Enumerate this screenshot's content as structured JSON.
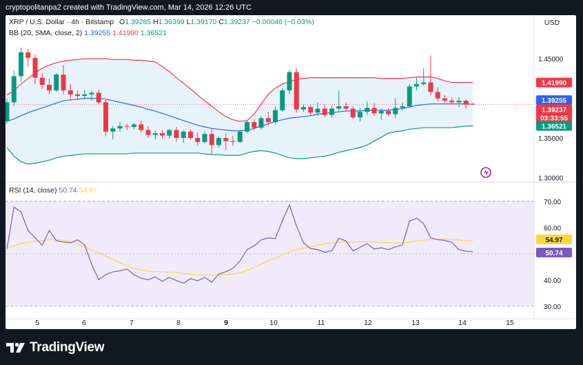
{
  "watermark_header": "cryptopolitanpa2 created with TradingView.com, Mar 14, 2026 12:26 UTC",
  "legend": {
    "symbol": "XRP / U.S. Dollar · 4h · Bitstamp",
    "open_label": "O",
    "open": "1.39285",
    "high_label": "H",
    "high": "1.39399",
    "low_label": "L",
    "low": "1.39170",
    "close_label": "C",
    "close": "1.39237",
    "change": "−0.00046 (−0.03%)",
    "bb_label": "BB (20, SMA, close, 2)",
    "bb_basis": "1.39255",
    "bb_upper": "1.41990",
    "bb_lower": "1.36521",
    "rsi_label": "RSI (14, close)",
    "rsi_value": "50.74",
    "rsi_ma": "54.97"
  },
  "currency_button": "USD",
  "colors": {
    "up": "#089981",
    "down": "#f23645",
    "bb_basis": "#2962ff",
    "bb_upper": "#f23645",
    "bb_lower": "#089981",
    "rsi": "#7e57c2",
    "rsi_ma": "#fdd835",
    "bb_fill": "#e7f3fb",
    "rsi_fill": "#f0ebfa"
  },
  "footer": {
    "brand": "TradingView"
  },
  "chart_data": [
    {
      "type": "candlestick",
      "title": "XRP / U.S. Dollar · 4h · Bitstamp",
      "x_tick_labels": [
        "5",
        "6",
        "7",
        "8",
        "9",
        "10",
        "11",
        "12",
        "13",
        "14",
        "15"
      ],
      "y_tick_labels": [
        "1.45000",
        "1.40000",
        "1.35000",
        "1.30000"
      ],
      "ylim": [
        1.2969,
        1.4718
      ],
      "price_labels": [
        {
          "name": "upper",
          "value": 1.4199,
          "text": "1.41990"
        },
        {
          "name": "basis",
          "value": 1.39255,
          "text": "1.39255"
        },
        {
          "name": "last",
          "value": 1.39237,
          "text": "1.39237",
          "countdown": "03:33:55"
        },
        {
          "name": "lower",
          "value": 1.36521,
          "text": "1.36521"
        }
      ],
      "candles": [
        {
          "o": 1.371,
          "h": 1.4,
          "l": 1.368,
          "c": 1.395
        },
        {
          "o": 1.395,
          "h": 1.435,
          "l": 1.39,
          "c": 1.428
        },
        {
          "o": 1.428,
          "h": 1.464,
          "l": 1.421,
          "c": 1.458
        },
        {
          "o": 1.458,
          "h": 1.462,
          "l": 1.44,
          "c": 1.451
        },
        {
          "o": 1.451,
          "h": 1.455,
          "l": 1.418,
          "c": 1.426
        },
        {
          "o": 1.426,
          "h": 1.432,
          "l": 1.412,
          "c": 1.417
        },
        {
          "o": 1.417,
          "h": 1.425,
          "l": 1.405,
          "c": 1.41
        },
        {
          "o": 1.41,
          "h": 1.432,
          "l": 1.408,
          "c": 1.43
        },
        {
          "o": 1.43,
          "h": 1.442,
          "l": 1.405,
          "c": 1.41
        },
        {
          "o": 1.41,
          "h": 1.418,
          "l": 1.397,
          "c": 1.405
        },
        {
          "o": 1.405,
          "h": 1.41,
          "l": 1.398,
          "c": 1.403
        },
        {
          "o": 1.403,
          "h": 1.41,
          "l": 1.399,
          "c": 1.405
        },
        {
          "o": 1.405,
          "h": 1.409,
          "l": 1.397,
          "c": 1.407
        },
        {
          "o": 1.407,
          "h": 1.411,
          "l": 1.392,
          "c": 1.395
        },
        {
          "o": 1.395,
          "h": 1.398,
          "l": 1.352,
          "c": 1.358
        },
        {
          "o": 1.358,
          "h": 1.365,
          "l": 1.348,
          "c": 1.362
        },
        {
          "o": 1.362,
          "h": 1.37,
          "l": 1.358,
          "c": 1.365
        },
        {
          "o": 1.365,
          "h": 1.368,
          "l": 1.36,
          "c": 1.364
        },
        {
          "o": 1.364,
          "h": 1.369,
          "l": 1.361,
          "c": 1.367
        },
        {
          "o": 1.367,
          "h": 1.372,
          "l": 1.357,
          "c": 1.36
        },
        {
          "o": 1.36,
          "h": 1.365,
          "l": 1.35,
          "c": 1.354
        },
        {
          "o": 1.354,
          "h": 1.359,
          "l": 1.348,
          "c": 1.356
        },
        {
          "o": 1.356,
          "h": 1.36,
          "l": 1.349,
          "c": 1.353
        },
        {
          "o": 1.353,
          "h": 1.361,
          "l": 1.349,
          "c": 1.36
        },
        {
          "o": 1.36,
          "h": 1.364,
          "l": 1.345,
          "c": 1.35
        },
        {
          "o": 1.35,
          "h": 1.36,
          "l": 1.344,
          "c": 1.358
        },
        {
          "o": 1.358,
          "h": 1.361,
          "l": 1.348,
          "c": 1.35
        },
        {
          "o": 1.35,
          "h": 1.357,
          "l": 1.34,
          "c": 1.345
        },
        {
          "o": 1.345,
          "h": 1.358,
          "l": 1.343,
          "c": 1.355
        },
        {
          "o": 1.355,
          "h": 1.362,
          "l": 1.33,
          "c": 1.341
        },
        {
          "o": 1.341,
          "h": 1.352,
          "l": 1.338,
          "c": 1.35
        },
        {
          "o": 1.35,
          "h": 1.356,
          "l": 1.335,
          "c": 1.346
        },
        {
          "o": 1.346,
          "h": 1.353,
          "l": 1.34,
          "c": 1.345
        },
        {
          "o": 1.345,
          "h": 1.36,
          "l": 1.344,
          "c": 1.358
        },
        {
          "o": 1.358,
          "h": 1.372,
          "l": 1.356,
          "c": 1.37
        },
        {
          "o": 1.37,
          "h": 1.374,
          "l": 1.36,
          "c": 1.363
        },
        {
          "o": 1.363,
          "h": 1.378,
          "l": 1.36,
          "c": 1.375
        },
        {
          "o": 1.375,
          "h": 1.383,
          "l": 1.366,
          "c": 1.37
        },
        {
          "o": 1.37,
          "h": 1.39,
          "l": 1.368,
          "c": 1.385
        },
        {
          "o": 1.385,
          "h": 1.413,
          "l": 1.383,
          "c": 1.41
        },
        {
          "o": 1.41,
          "h": 1.436,
          "l": 1.405,
          "c": 1.433
        },
        {
          "o": 1.433,
          "h": 1.438,
          "l": 1.382,
          "c": 1.386
        },
        {
          "o": 1.386,
          "h": 1.392,
          "l": 1.383,
          "c": 1.389
        },
        {
          "o": 1.389,
          "h": 1.392,
          "l": 1.378,
          "c": 1.382
        },
        {
          "o": 1.382,
          "h": 1.395,
          "l": 1.378,
          "c": 1.387
        },
        {
          "o": 1.387,
          "h": 1.392,
          "l": 1.376,
          "c": 1.379
        },
        {
          "o": 1.379,
          "h": 1.391,
          "l": 1.376,
          "c": 1.387
        },
        {
          "o": 1.387,
          "h": 1.41,
          "l": 1.384,
          "c": 1.39
        },
        {
          "o": 1.39,
          "h": 1.395,
          "l": 1.384,
          "c": 1.387
        },
        {
          "o": 1.387,
          "h": 1.39,
          "l": 1.374,
          "c": 1.376
        },
        {
          "o": 1.376,
          "h": 1.388,
          "l": 1.371,
          "c": 1.383
        },
        {
          "o": 1.383,
          "h": 1.396,
          "l": 1.379,
          "c": 1.388
        },
        {
          "o": 1.388,
          "h": 1.394,
          "l": 1.378,
          "c": 1.381
        },
        {
          "o": 1.381,
          "h": 1.387,
          "l": 1.373,
          "c": 1.384
        },
        {
          "o": 1.384,
          "h": 1.387,
          "l": 1.378,
          "c": 1.38
        },
        {
          "o": 1.38,
          "h": 1.4,
          "l": 1.375,
          "c": 1.388
        },
        {
          "o": 1.388,
          "h": 1.395,
          "l": 1.385,
          "c": 1.39
        },
        {
          "o": 1.39,
          "h": 1.418,
          "l": 1.388,
          "c": 1.415
        },
        {
          "o": 1.415,
          "h": 1.426,
          "l": 1.41,
          "c": 1.418
        },
        {
          "o": 1.418,
          "h": 1.438,
          "l": 1.416,
          "c": 1.42
        },
        {
          "o": 1.42,
          "h": 1.454,
          "l": 1.404,
          "c": 1.408
        },
        {
          "o": 1.408,
          "h": 1.414,
          "l": 1.396,
          "c": 1.4
        },
        {
          "o": 1.4,
          "h": 1.404,
          "l": 1.394,
          "c": 1.397
        },
        {
          "o": 1.397,
          "h": 1.401,
          "l": 1.393,
          "c": 1.395
        },
        {
          "o": 1.395,
          "h": 1.401,
          "l": 1.389,
          "c": 1.397
        },
        {
          "o": 1.397,
          "h": 1.399,
          "l": 1.387,
          "c": 1.392
        },
        {
          "o": 1.39285,
          "h": 1.39399,
          "l": 1.3917,
          "c": 1.39237
        }
      ],
      "series": [
        {
          "name": "BB basis",
          "values": [
            1.371,
            1.374,
            1.378,
            1.382,
            1.385,
            1.388,
            1.391,
            1.394,
            1.397,
            1.398,
            1.399,
            1.4,
            1.4,
            1.4,
            1.399,
            1.397,
            1.395,
            1.393,
            1.391,
            1.389,
            1.386,
            1.384,
            1.381,
            1.378,
            1.375,
            1.372,
            1.369,
            1.366,
            1.364,
            1.362,
            1.361,
            1.36,
            1.359,
            1.359,
            1.36,
            1.362,
            1.365,
            1.368,
            1.371,
            1.373,
            1.375,
            1.376,
            1.377,
            1.378,
            1.38,
            1.381,
            1.382,
            1.383,
            1.384,
            1.384,
            1.384,
            1.385,
            1.385,
            1.385,
            1.385,
            1.386,
            1.387,
            1.389,
            1.391,
            1.392,
            1.393,
            1.393,
            1.393,
            1.393,
            1.393,
            1.393,
            1.39255
          ]
        },
        {
          "name": "BB upper",
          "values": [
            1.404,
            1.41,
            1.418,
            1.425,
            1.432,
            1.438,
            1.442,
            1.445,
            1.447,
            1.448,
            1.449,
            1.45,
            1.45,
            1.45,
            1.45,
            1.449,
            1.449,
            1.449,
            1.448,
            1.448,
            1.447,
            1.446,
            1.44,
            1.434,
            1.426,
            1.419,
            1.412,
            1.404,
            1.397,
            1.39,
            1.383,
            1.377,
            1.373,
            1.371,
            1.372,
            1.38,
            1.393,
            1.405,
            1.413,
            1.418,
            1.421,
            1.424,
            1.425,
            1.426,
            1.426,
            1.426,
            1.426,
            1.426,
            1.426,
            1.426,
            1.426,
            1.426,
            1.426,
            1.425,
            1.425,
            1.425,
            1.425,
            1.426,
            1.427,
            1.427,
            1.427,
            1.425,
            1.422,
            1.42,
            1.42,
            1.42,
            1.4199
          ]
        },
        {
          "name": "BB lower",
          "values": [
            1.338,
            1.327,
            1.32,
            1.317,
            1.318,
            1.32,
            1.322,
            1.325,
            1.327,
            1.328,
            1.329,
            1.33,
            1.33,
            1.33,
            1.33,
            1.33,
            1.33,
            1.33,
            1.331,
            1.331,
            1.331,
            1.331,
            1.331,
            1.331,
            1.331,
            1.331,
            1.331,
            1.331,
            1.33,
            1.329,
            1.329,
            1.328,
            1.328,
            1.328,
            1.331,
            1.333,
            1.334,
            1.333,
            1.331,
            1.328,
            1.325,
            1.324,
            1.324,
            1.325,
            1.326,
            1.327,
            1.329,
            1.332,
            1.334,
            1.336,
            1.338,
            1.341,
            1.346,
            1.351,
            1.356,
            1.358,
            1.359,
            1.361,
            1.362,
            1.363,
            1.363,
            1.363,
            1.363,
            1.363,
            1.364,
            1.365,
            1.36521
          ]
        }
      ]
    },
    {
      "type": "line",
      "title": "RSI (14, close)",
      "ylim": [
        27.6,
        73.9
      ],
      "y_tick_labels": [
        "70.00",
        "60.00",
        "50.00",
        "40.00",
        "30.00"
      ],
      "band": [
        30,
        70
      ],
      "midline": 50,
      "price_labels": [
        {
          "name": "rsi_ma",
          "value": 54.97,
          "text": "54.97"
        },
        {
          "name": "rsi",
          "value": 50.74,
          "text": "50.74"
        }
      ],
      "series": [
        {
          "name": "RSI",
          "values": [
            51.8,
            67.8,
            66,
            58.8,
            56.2,
            53.3,
            58.9,
            55,
            54.5,
            54.2,
            55.3,
            53.4,
            46,
            40.1,
            42.1,
            43.1,
            43.5,
            44.2,
            42,
            40.7,
            40.1,
            41.2,
            39.5,
            41,
            39.8,
            38.8,
            40.5,
            39.7,
            41,
            39.2,
            42.3,
            43.2,
            44.5,
            47.3,
            51.6,
            53,
            55.3,
            56.1,
            55.8,
            62.7,
            68.6,
            60.6,
            54.1,
            52,
            51.6,
            50.6,
            51.2,
            55.9,
            54.9,
            51.1,
            52.5,
            53.9,
            51.8,
            52.3,
            51.6,
            52.6,
            53.4,
            62.4,
            63.6,
            61.5,
            56.1,
            55.4,
            55.1,
            54.4,
            51.6,
            51,
            50.74
          ]
        },
        {
          "name": "RSI MA",
          "values": [
            52,
            53.1,
            54,
            54.3,
            54.8,
            55,
            55.5,
            55.5,
            55.2,
            54.7,
            53.6,
            52.6,
            51.4,
            50.3,
            49.1,
            48,
            46.6,
            45.3,
            44.4,
            43.9,
            43.4,
            43.2,
            43.1,
            43,
            42.9,
            42.5,
            42.2,
            41.9,
            41.9,
            41.9,
            42,
            42.1,
            42.3,
            42.8,
            43.7,
            44.8,
            46,
            47.3,
            48.4,
            49.5,
            50.8,
            51.7,
            52.1,
            52.7,
            53.4,
            53.8,
            54.2,
            54.4,
            54.4,
            54.5,
            54.6,
            54.6,
            54.5,
            54.4,
            54.2,
            54.2,
            54.1,
            54.5,
            54.9,
            55.2,
            55.5,
            55.6,
            55.6,
            55.5,
            55.2,
            55,
            54.97
          ]
        }
      ]
    }
  ]
}
